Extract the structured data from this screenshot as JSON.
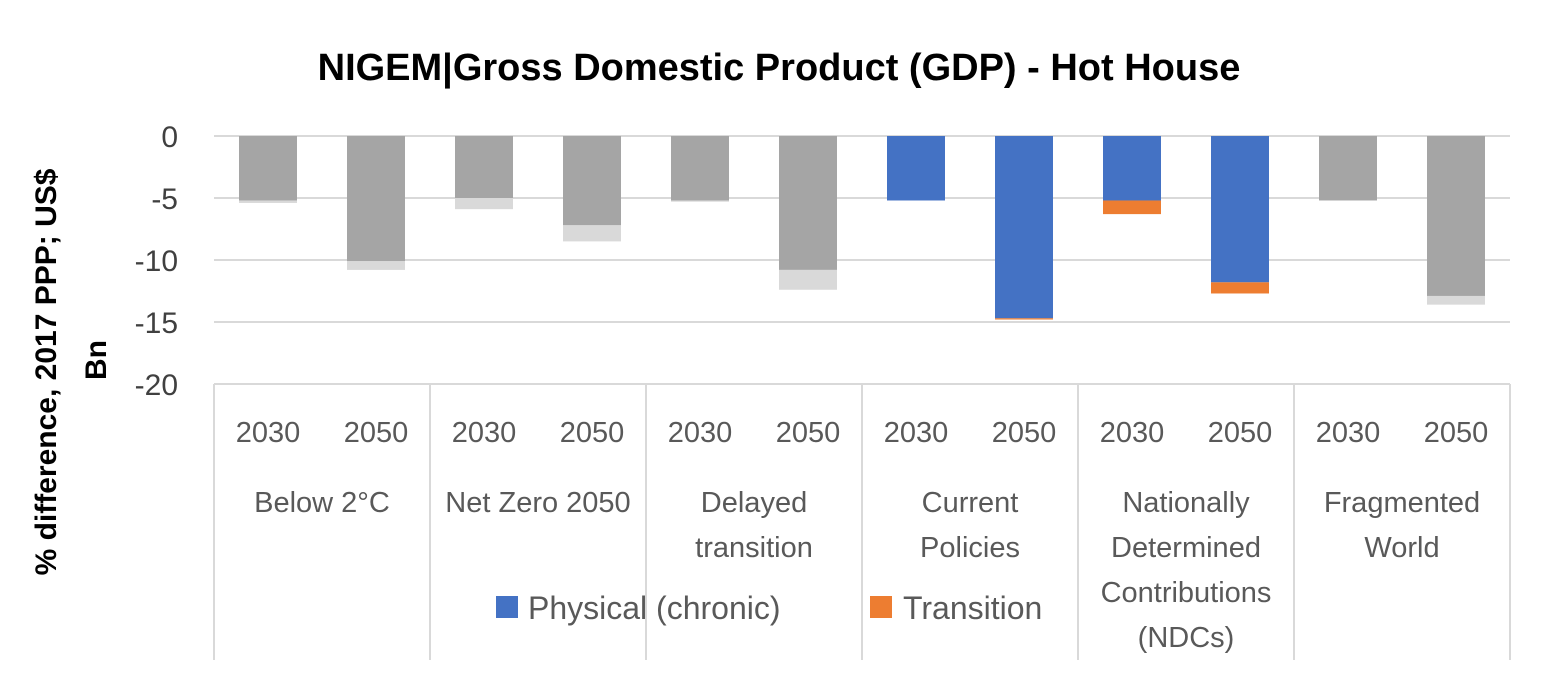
{
  "chart_data": {
    "type": "bar",
    "stacked": true,
    "title": "NIGEM|Gross Domestic Product (GDP) - Hot House",
    "ylabel": "% difference,  2017 PPP; US$ Bn",
    "xlabel": "",
    "ylim": [
      -20,
      0
    ],
    "yticks": [
      0,
      -5,
      -10,
      -15,
      -20
    ],
    "grid": true,
    "legend_position": "bottom",
    "groups": [
      {
        "name": "Below 2°C",
        "lines": [
          "Below 2°C"
        ],
        "years": [
          "2030",
          "2050"
        ]
      },
      {
        "name": "Net Zero 2050",
        "lines": [
          "Net Zero 2050"
        ],
        "years": [
          "2030",
          "2050"
        ]
      },
      {
        "name": "Delayed transition",
        "lines": [
          "Delayed",
          "transition"
        ],
        "years": [
          "2030",
          "2050"
        ]
      },
      {
        "name": "Current Policies",
        "lines": [
          "Current",
          "Policies"
        ],
        "years": [
          "2030",
          "2050"
        ]
      },
      {
        "name": "Nationally Determined Contributions (NDCs)",
        "lines": [
          "Nationally",
          "Determined",
          "Contributions",
          "(NDCs)"
        ],
        "years": [
          "2030",
          "2050"
        ]
      },
      {
        "name": "Fragmented World",
        "lines": [
          "Fragmented",
          "World"
        ],
        "years": [
          "2030",
          "2050"
        ]
      }
    ],
    "highlight_group": "Current Policies",
    "series": [
      {
        "name": "Physical (chronic)",
        "color": "#4472C4",
        "dim_color": "#A5A5A5",
        "values": [
          -5.2,
          -10.1,
          -5.0,
          -7.2,
          -5.2,
          -10.8,
          -5.2,
          -14.7,
          -5.2,
          -11.8,
          -5.2,
          -12.9
        ]
      },
      {
        "name": "Transition",
        "color": "#ED7D31",
        "dim_color": "#D9D9D9",
        "values": [
          -0.2,
          -0.7,
          -0.9,
          -1.3,
          -0.1,
          -1.6,
          0.0,
          -0.1,
          -1.1,
          -0.9,
          0.0,
          -0.7
        ]
      }
    ]
  }
}
